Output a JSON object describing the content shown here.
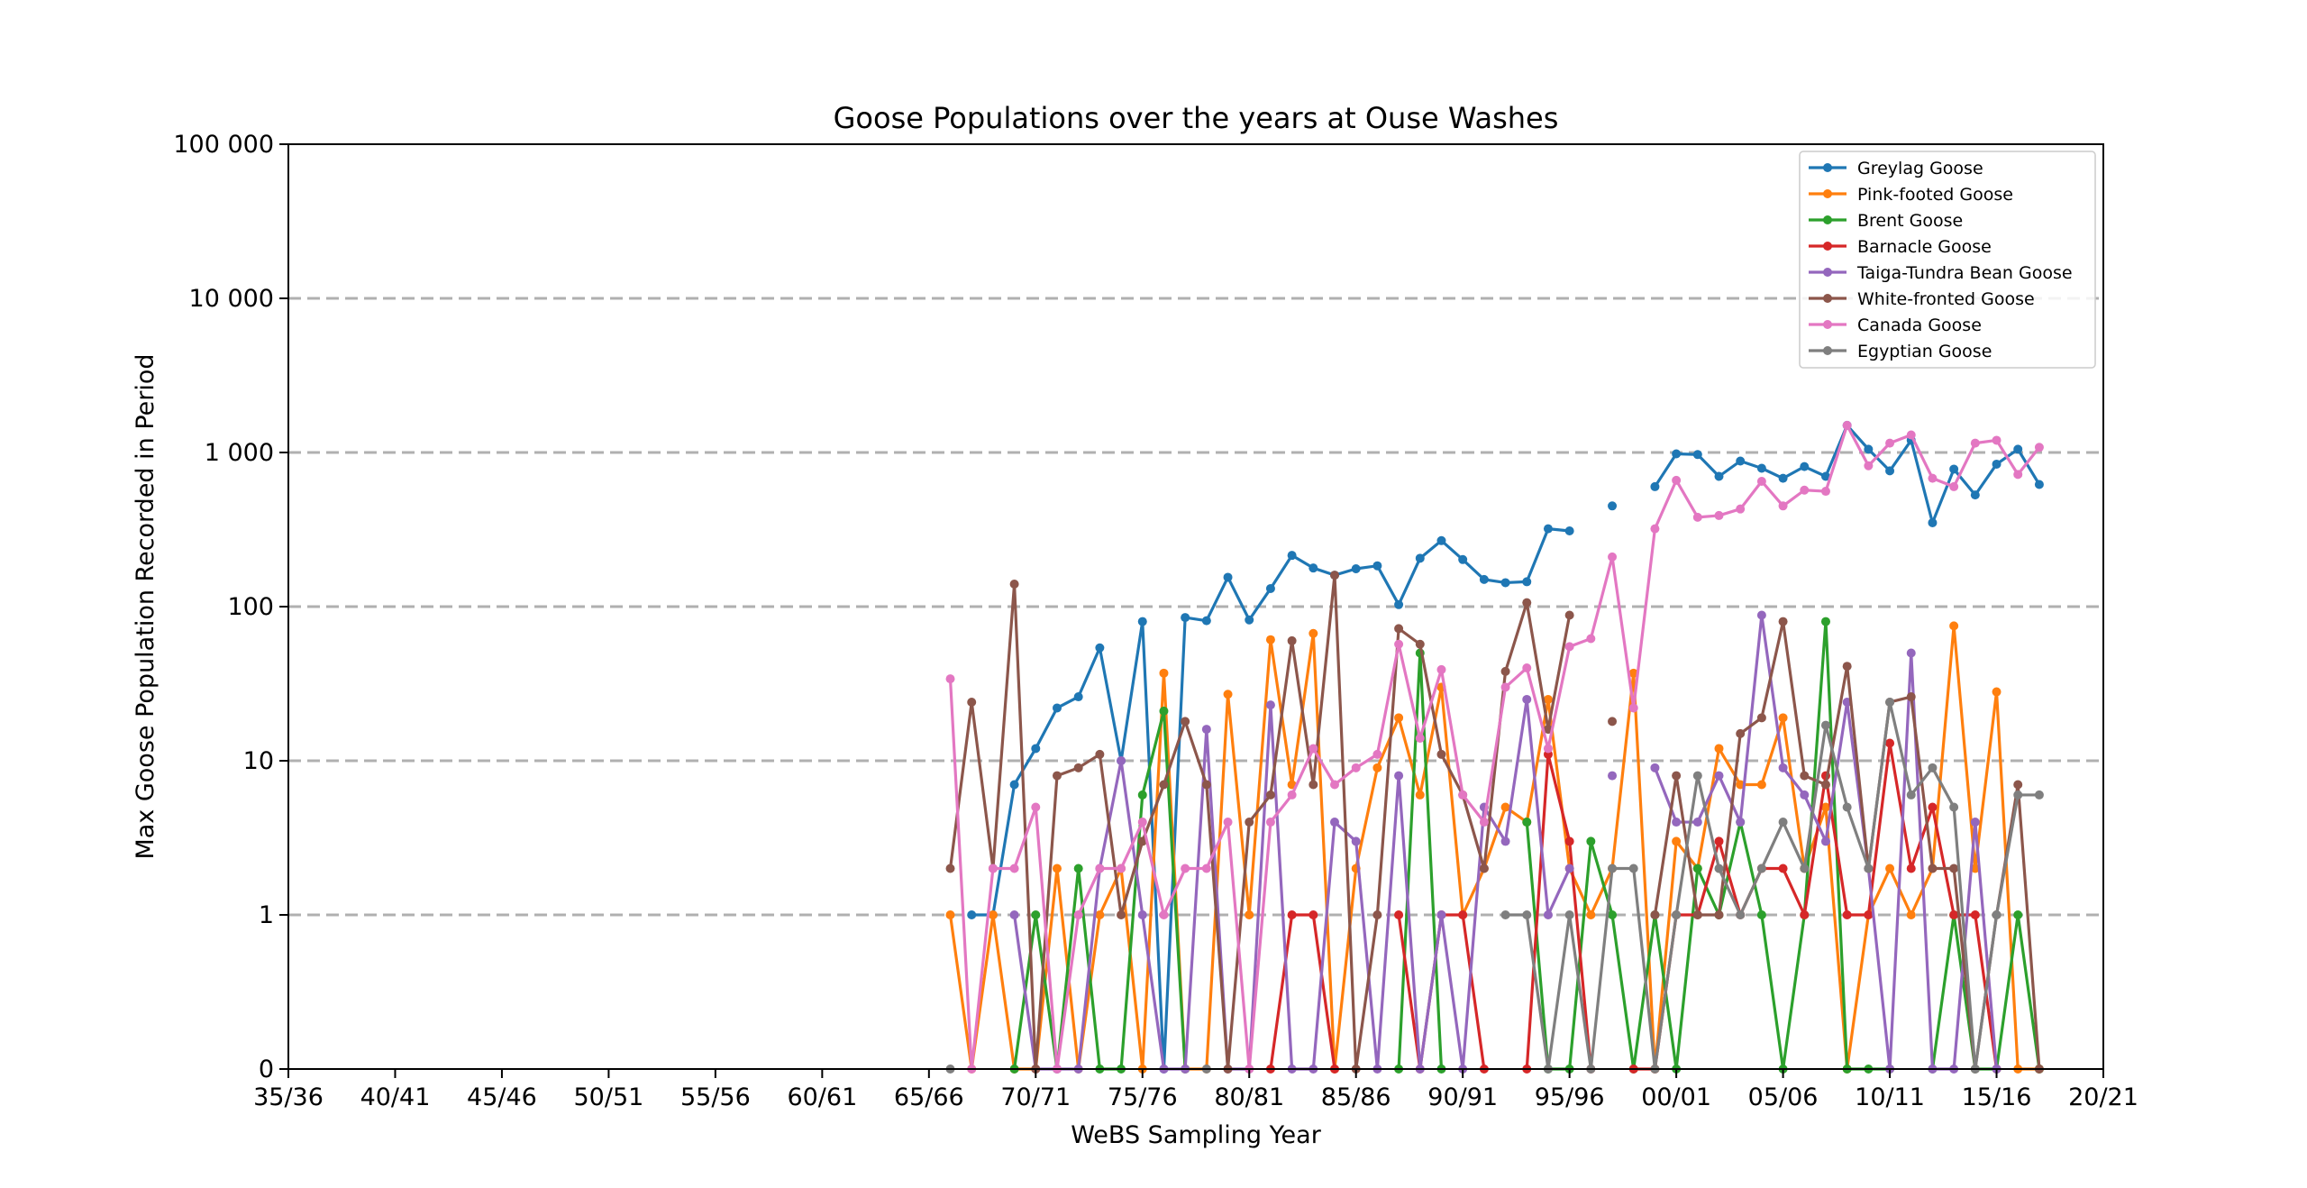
{
  "chart_data": {
    "type": "line",
    "title": "Goose Populations over the years at Ouse Washes",
    "xlabel": "WeBS Sampling Year",
    "ylabel": "Max Goose Population Recorded in Period",
    "y_scale": "symlog",
    "ylim": [
      0,
      100000
    ],
    "xlim": [
      1935,
      2020
    ],
    "x_tick_labels": [
      "35/36",
      "40/41",
      "45/46",
      "50/51",
      "55/56",
      "60/61",
      "65/66",
      "70/71",
      "75/76",
      "80/81",
      "85/86",
      "90/91",
      "95/96",
      "00/01",
      "05/06",
      "10/11",
      "15/16",
      "20/21"
    ],
    "y_tick_labels": [
      "0",
      "1",
      "10",
      "100",
      "1 000",
      "10 000",
      "100 000"
    ],
    "grid": "horizontal dashed",
    "legend_position": "top-right",
    "x_start": 1966,
    "series": [
      {
        "name": "Greylag Goose",
        "color": "#1f77b4",
        "values": [
          null,
          1,
          1,
          7,
          12,
          22,
          26,
          54,
          10,
          80,
          0,
          85,
          81,
          155,
          82,
          131,
          215,
          178,
          160,
          176,
          184,
          103,
          206,
          268,
          202,
          150,
          143,
          145,
          320,
          310,
          null,
          450,
          null,
          600,
          980,
          970,
          700,
          880,
          790,
          680,
          810,
          700,
          1500,
          1050,
          760,
          1200,
          350,
          780,
          530,
          840,
          1050,
          620
        ]
      },
      {
        "name": "Pink-footed Goose",
        "color": "#ff7f0e",
        "values": [
          1,
          0,
          1,
          0,
          0,
          2,
          0,
          1,
          2,
          0,
          37,
          0,
          0,
          27,
          1,
          61,
          7,
          67,
          0,
          2,
          9,
          19,
          6,
          30,
          1,
          2,
          5,
          4,
          25,
          2,
          1,
          2,
          37,
          0,
          3,
          2,
          12,
          7,
          7,
          19,
          2,
          5,
          0,
          1,
          2,
          1,
          2,
          75,
          2,
          28,
          0,
          0
        ]
      },
      {
        "name": "Brent Goose",
        "color": "#2ca02c",
        "values": [
          null,
          null,
          null,
          0,
          1,
          0,
          2,
          0,
          0,
          6,
          21,
          0,
          null,
          null,
          null,
          null,
          null,
          null,
          null,
          null,
          null,
          0,
          50,
          0,
          null,
          null,
          null,
          4,
          0,
          0,
          3,
          1,
          0,
          1,
          0,
          2,
          1,
          4,
          1,
          0,
          1,
          80,
          0,
          0,
          0,
          null,
          0,
          1,
          0,
          0,
          1,
          0
        ]
      },
      {
        "name": "Barnacle Goose",
        "color": "#d62728",
        "values": [
          null,
          null,
          null,
          null,
          null,
          null,
          null,
          null,
          null,
          null,
          null,
          null,
          null,
          null,
          null,
          0,
          1,
          1,
          0,
          null,
          null,
          1,
          0,
          1,
          1,
          0,
          null,
          0,
          11,
          3,
          0,
          null,
          0,
          0,
          1,
          1,
          3,
          1,
          2,
          2,
          1,
          8,
          1,
          1,
          13,
          2,
          5,
          1,
          1,
          0,
          null,
          null
        ]
      },
      {
        "name": "Taiga-Tundra Bean Goose",
        "color": "#9467bd",
        "values": [
          null,
          null,
          null,
          1,
          0,
          0,
          0,
          2,
          10,
          1,
          0,
          0,
          16,
          0,
          0,
          23,
          0,
          0,
          4,
          3,
          0,
          8,
          0,
          1,
          0,
          5,
          3,
          25,
          1,
          2,
          null,
          8,
          null,
          9,
          4,
          4,
          8,
          4,
          88,
          9,
          6,
          3,
          24,
          2,
          0,
          50,
          0,
          0,
          4,
          0,
          null,
          null
        ]
      },
      {
        "name": "White-fronted Goose",
        "color": "#8c564b",
        "values": [
          2,
          24,
          2,
          140,
          0,
          8,
          9,
          11,
          1,
          3,
          7,
          18,
          7,
          0,
          4,
          6,
          60,
          7,
          160,
          0,
          1,
          72,
          57,
          11,
          6,
          2,
          38,
          106,
          16,
          88,
          null,
          18,
          null,
          1,
          8,
          1,
          1,
          15,
          19,
          80,
          8,
          7,
          41,
          2,
          24,
          26,
          2,
          2,
          0,
          1,
          7,
          0
        ]
      },
      {
        "name": "Canada Goose",
        "color": "#e377c2",
        "values": [
          34,
          0,
          2,
          2,
          5,
          0,
          1,
          2,
          2,
          4,
          1,
          2,
          2,
          4,
          0,
          4,
          6,
          12,
          7,
          9,
          11,
          57,
          14,
          39,
          6,
          4,
          30,
          40,
          12,
          55,
          62,
          210,
          22,
          320,
          660,
          380,
          390,
          430,
          650,
          450,
          570,
          560,
          1500,
          820,
          1150,
          1300,
          680,
          600,
          1150,
          1200,
          720,
          1080
        ]
      },
      {
        "name": "Egyptian Goose",
        "color": "#7f7f7f",
        "values": [
          0,
          null,
          null,
          null,
          null,
          null,
          null,
          null,
          null,
          null,
          null,
          null,
          0,
          null,
          null,
          null,
          null,
          null,
          null,
          null,
          null,
          null,
          null,
          null,
          null,
          null,
          1,
          1,
          0,
          1,
          0,
          2,
          2,
          0,
          1,
          8,
          2,
          1,
          2,
          4,
          2,
          17,
          5,
          2,
          24,
          6,
          9,
          5,
          0,
          1,
          6,
          6
        ]
      }
    ]
  }
}
